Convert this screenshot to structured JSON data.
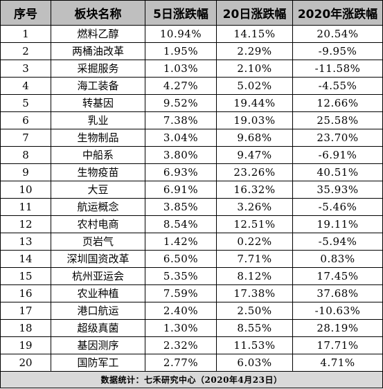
{
  "headers": [
    "序号",
    "板块名称",
    "5日涨跌幅",
    "20日涨跌幅",
    "2020年涨跌幅"
  ],
  "rows": [
    [
      "1",
      "燃料乙醇",
      "10.94%",
      "14.15%",
      "20.54%"
    ],
    [
      "2",
      "两桶油改革",
      "1.95%",
      "2.29%",
      "-9.95%"
    ],
    [
      "3",
      "采掘服务",
      "1.03%",
      "2.10%",
      "-11.58%"
    ],
    [
      "4",
      "海工装备",
      "4.27%",
      "5.02%",
      "-4.55%"
    ],
    [
      "5",
      "转基因",
      "9.52%",
      "19.44%",
      "12.66%"
    ],
    [
      "6",
      "乳业",
      "7.38%",
      "19.03%",
      "25.58%"
    ],
    [
      "7",
      "生物制品",
      "3.04%",
      "9.68%",
      "23.70%"
    ],
    [
      "8",
      "中船系",
      "3.80%",
      "9.47%",
      "-6.91%"
    ],
    [
      "9",
      "生物疫苗",
      "6.93%",
      "23.26%",
      "40.51%"
    ],
    [
      "10",
      "大豆",
      "6.91%",
      "16.32%",
      "35.93%"
    ],
    [
      "11",
      "航运概念",
      "3.85%",
      "3.26%",
      "-5.46%"
    ],
    [
      "12",
      "农村电商",
      "8.54%",
      "12.51%",
      "19.11%"
    ],
    [
      "13",
      "页岩气",
      "1.42%",
      "0.22%",
      "-5.94%"
    ],
    [
      "14",
      "深圳国资改革",
      "6.50%",
      "7.71%",
      "0.83%"
    ],
    [
      "15",
      "杭州亚运会",
      "5.35%",
      "8.12%",
      "17.45%"
    ],
    [
      "16",
      "农业种植",
      "7.59%",
      "17.38%",
      "37.68%"
    ],
    [
      "17",
      "港口航运",
      "2.40%",
      "2.50%",
      "-10.63%"
    ],
    [
      "18",
      "超级真菌",
      "1.30%",
      "8.55%",
      "28.19%"
    ],
    [
      "19",
      "基因测序",
      "2.32%",
      "11.53%",
      "17.71%"
    ],
    [
      "20",
      "国防军工",
      "2.77%",
      "6.03%",
      "4.71%"
    ]
  ],
  "footer": "数据统计：七禾研究中心（2020年4月23日）"
}
